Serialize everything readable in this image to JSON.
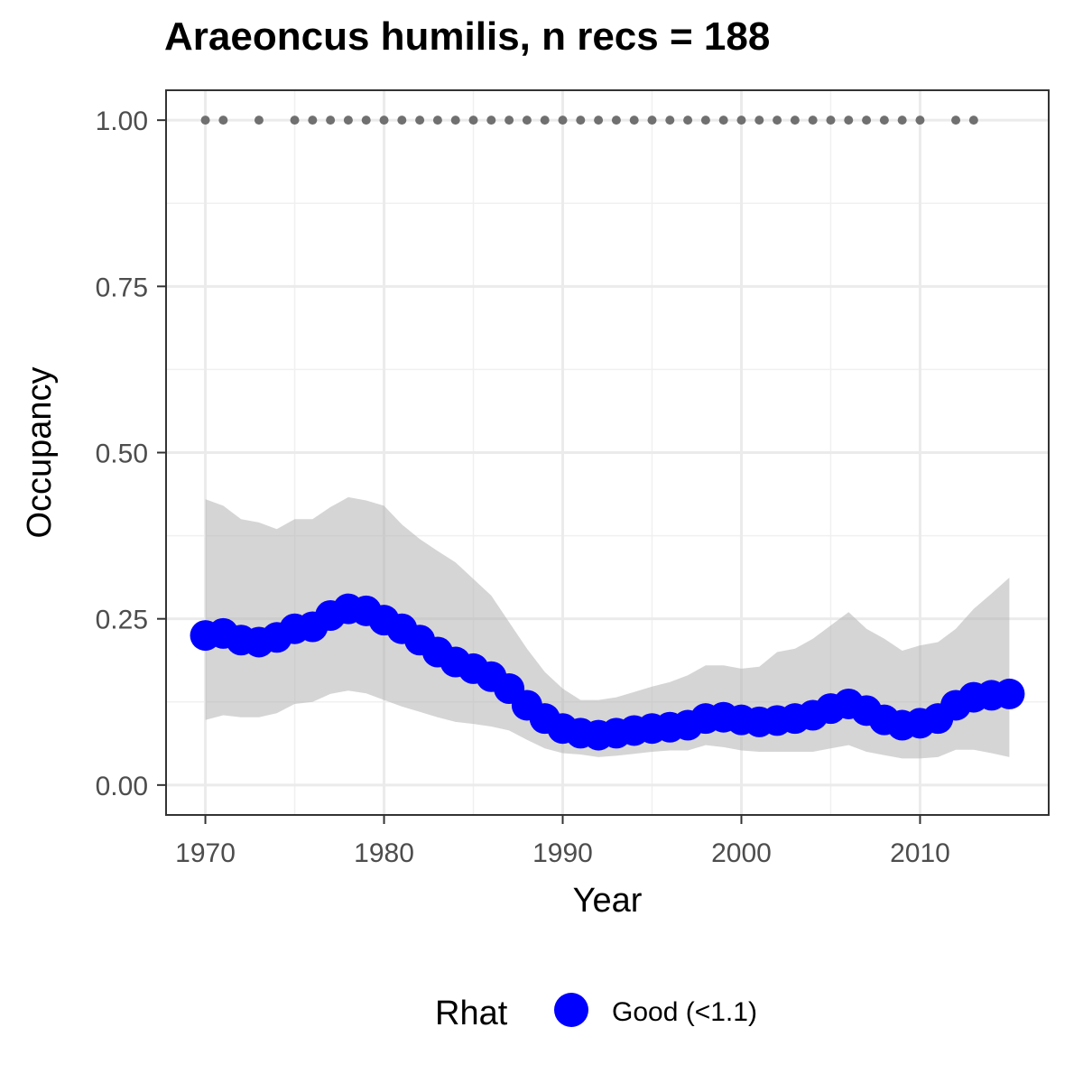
{
  "chart_data": {
    "type": "line",
    "title": "Araeoncus humilis, n recs = 188",
    "xlabel": "Year",
    "ylabel": "Occupancy",
    "xlim": [
      1967.8,
      2017.2
    ],
    "ylim": [
      -0.045,
      1.045
    ],
    "x_ticks": [
      1970,
      1980,
      1990,
      2000,
      2010
    ],
    "y_ticks": [
      0.0,
      0.25,
      0.5,
      0.75,
      1.0
    ],
    "y_tick_labels": [
      "0.00",
      "0.25",
      "0.50",
      "0.75",
      "1.00"
    ],
    "grid": true,
    "legend": {
      "title": "Rhat",
      "position": "bottom",
      "entries": [
        {
          "label": "Good (<1.1)",
          "color": "#0000ff"
        }
      ]
    },
    "series": [
      {
        "name": "Good (<1.1)",
        "color": "#0000ff",
        "x": [
          1970,
          1971,
          1972,
          1973,
          1974,
          1975,
          1976,
          1977,
          1978,
          1979,
          1980,
          1981,
          1982,
          1983,
          1984,
          1985,
          1986,
          1987,
          1988,
          1989,
          1990,
          1991,
          1992,
          1993,
          1994,
          1995,
          1996,
          1997,
          1998,
          1999,
          2000,
          2001,
          2002,
          2003,
          2004,
          2005,
          2006,
          2007,
          2008,
          2009,
          2010,
          2011,
          2012,
          2013,
          2014,
          2015
        ],
        "values": [
          0.225,
          0.228,
          0.218,
          0.215,
          0.222,
          0.235,
          0.238,
          0.255,
          0.265,
          0.262,
          0.248,
          0.235,
          0.218,
          0.2,
          0.185,
          0.175,
          0.163,
          0.145,
          0.12,
          0.1,
          0.085,
          0.078,
          0.075,
          0.078,
          0.082,
          0.085,
          0.087,
          0.09,
          0.1,
          0.102,
          0.098,
          0.095,
          0.097,
          0.1,
          0.105,
          0.115,
          0.122,
          0.112,
          0.098,
          0.09,
          0.093,
          0.1,
          0.12,
          0.132,
          0.135,
          0.137
        ],
        "lower": [
          0.098,
          0.105,
          0.102,
          0.102,
          0.108,
          0.122,
          0.125,
          0.137,
          0.142,
          0.138,
          0.128,
          0.118,
          0.11,
          0.102,
          0.095,
          0.092,
          0.088,
          0.082,
          0.068,
          0.055,
          0.048,
          0.046,
          0.042,
          0.044,
          0.047,
          0.05,
          0.052,
          0.052,
          0.06,
          0.057,
          0.052,
          0.05,
          0.05,
          0.05,
          0.05,
          0.055,
          0.06,
          0.05,
          0.045,
          0.04,
          0.04,
          0.042,
          0.053,
          0.053,
          0.048,
          0.042
        ],
        "upper": [
          0.43,
          0.42,
          0.4,
          0.395,
          0.385,
          0.4,
          0.4,
          0.418,
          0.433,
          0.428,
          0.42,
          0.392,
          0.37,
          0.352,
          0.335,
          0.31,
          0.285,
          0.245,
          0.205,
          0.17,
          0.145,
          0.128,
          0.128,
          0.132,
          0.14,
          0.148,
          0.155,
          0.165,
          0.18,
          0.18,
          0.175,
          0.178,
          0.2,
          0.205,
          0.22,
          0.24,
          0.26,
          0.235,
          0.22,
          0.202,
          0.21,
          0.215,
          0.235,
          0.265,
          0.288,
          0.312
        ]
      },
      {
        "name": "",
        "type": "scatter",
        "color": "#707070",
        "x": [
          1970,
          1971,
          1973,
          1975,
          1976,
          1977,
          1978,
          1979,
          1980,
          1981,
          1982,
          1983,
          1984,
          1985,
          1986,
          1987,
          1988,
          1989,
          1990,
          1991,
          1992,
          1993,
          1994,
          1995,
          1996,
          1997,
          1998,
          1999,
          2000,
          2001,
          2002,
          2003,
          2004,
          2005,
          2006,
          2007,
          2008,
          2009,
          2010,
          2012,
          2013
        ],
        "values": [
          1,
          1,
          1,
          1,
          1,
          1,
          1,
          1,
          1,
          1,
          1,
          1,
          1,
          1,
          1,
          1,
          1,
          1,
          1,
          1,
          1,
          1,
          1,
          1,
          1,
          1,
          1,
          1,
          1,
          1,
          1,
          1,
          1,
          1,
          1,
          1,
          1,
          1,
          1,
          1,
          1
        ]
      }
    ]
  }
}
